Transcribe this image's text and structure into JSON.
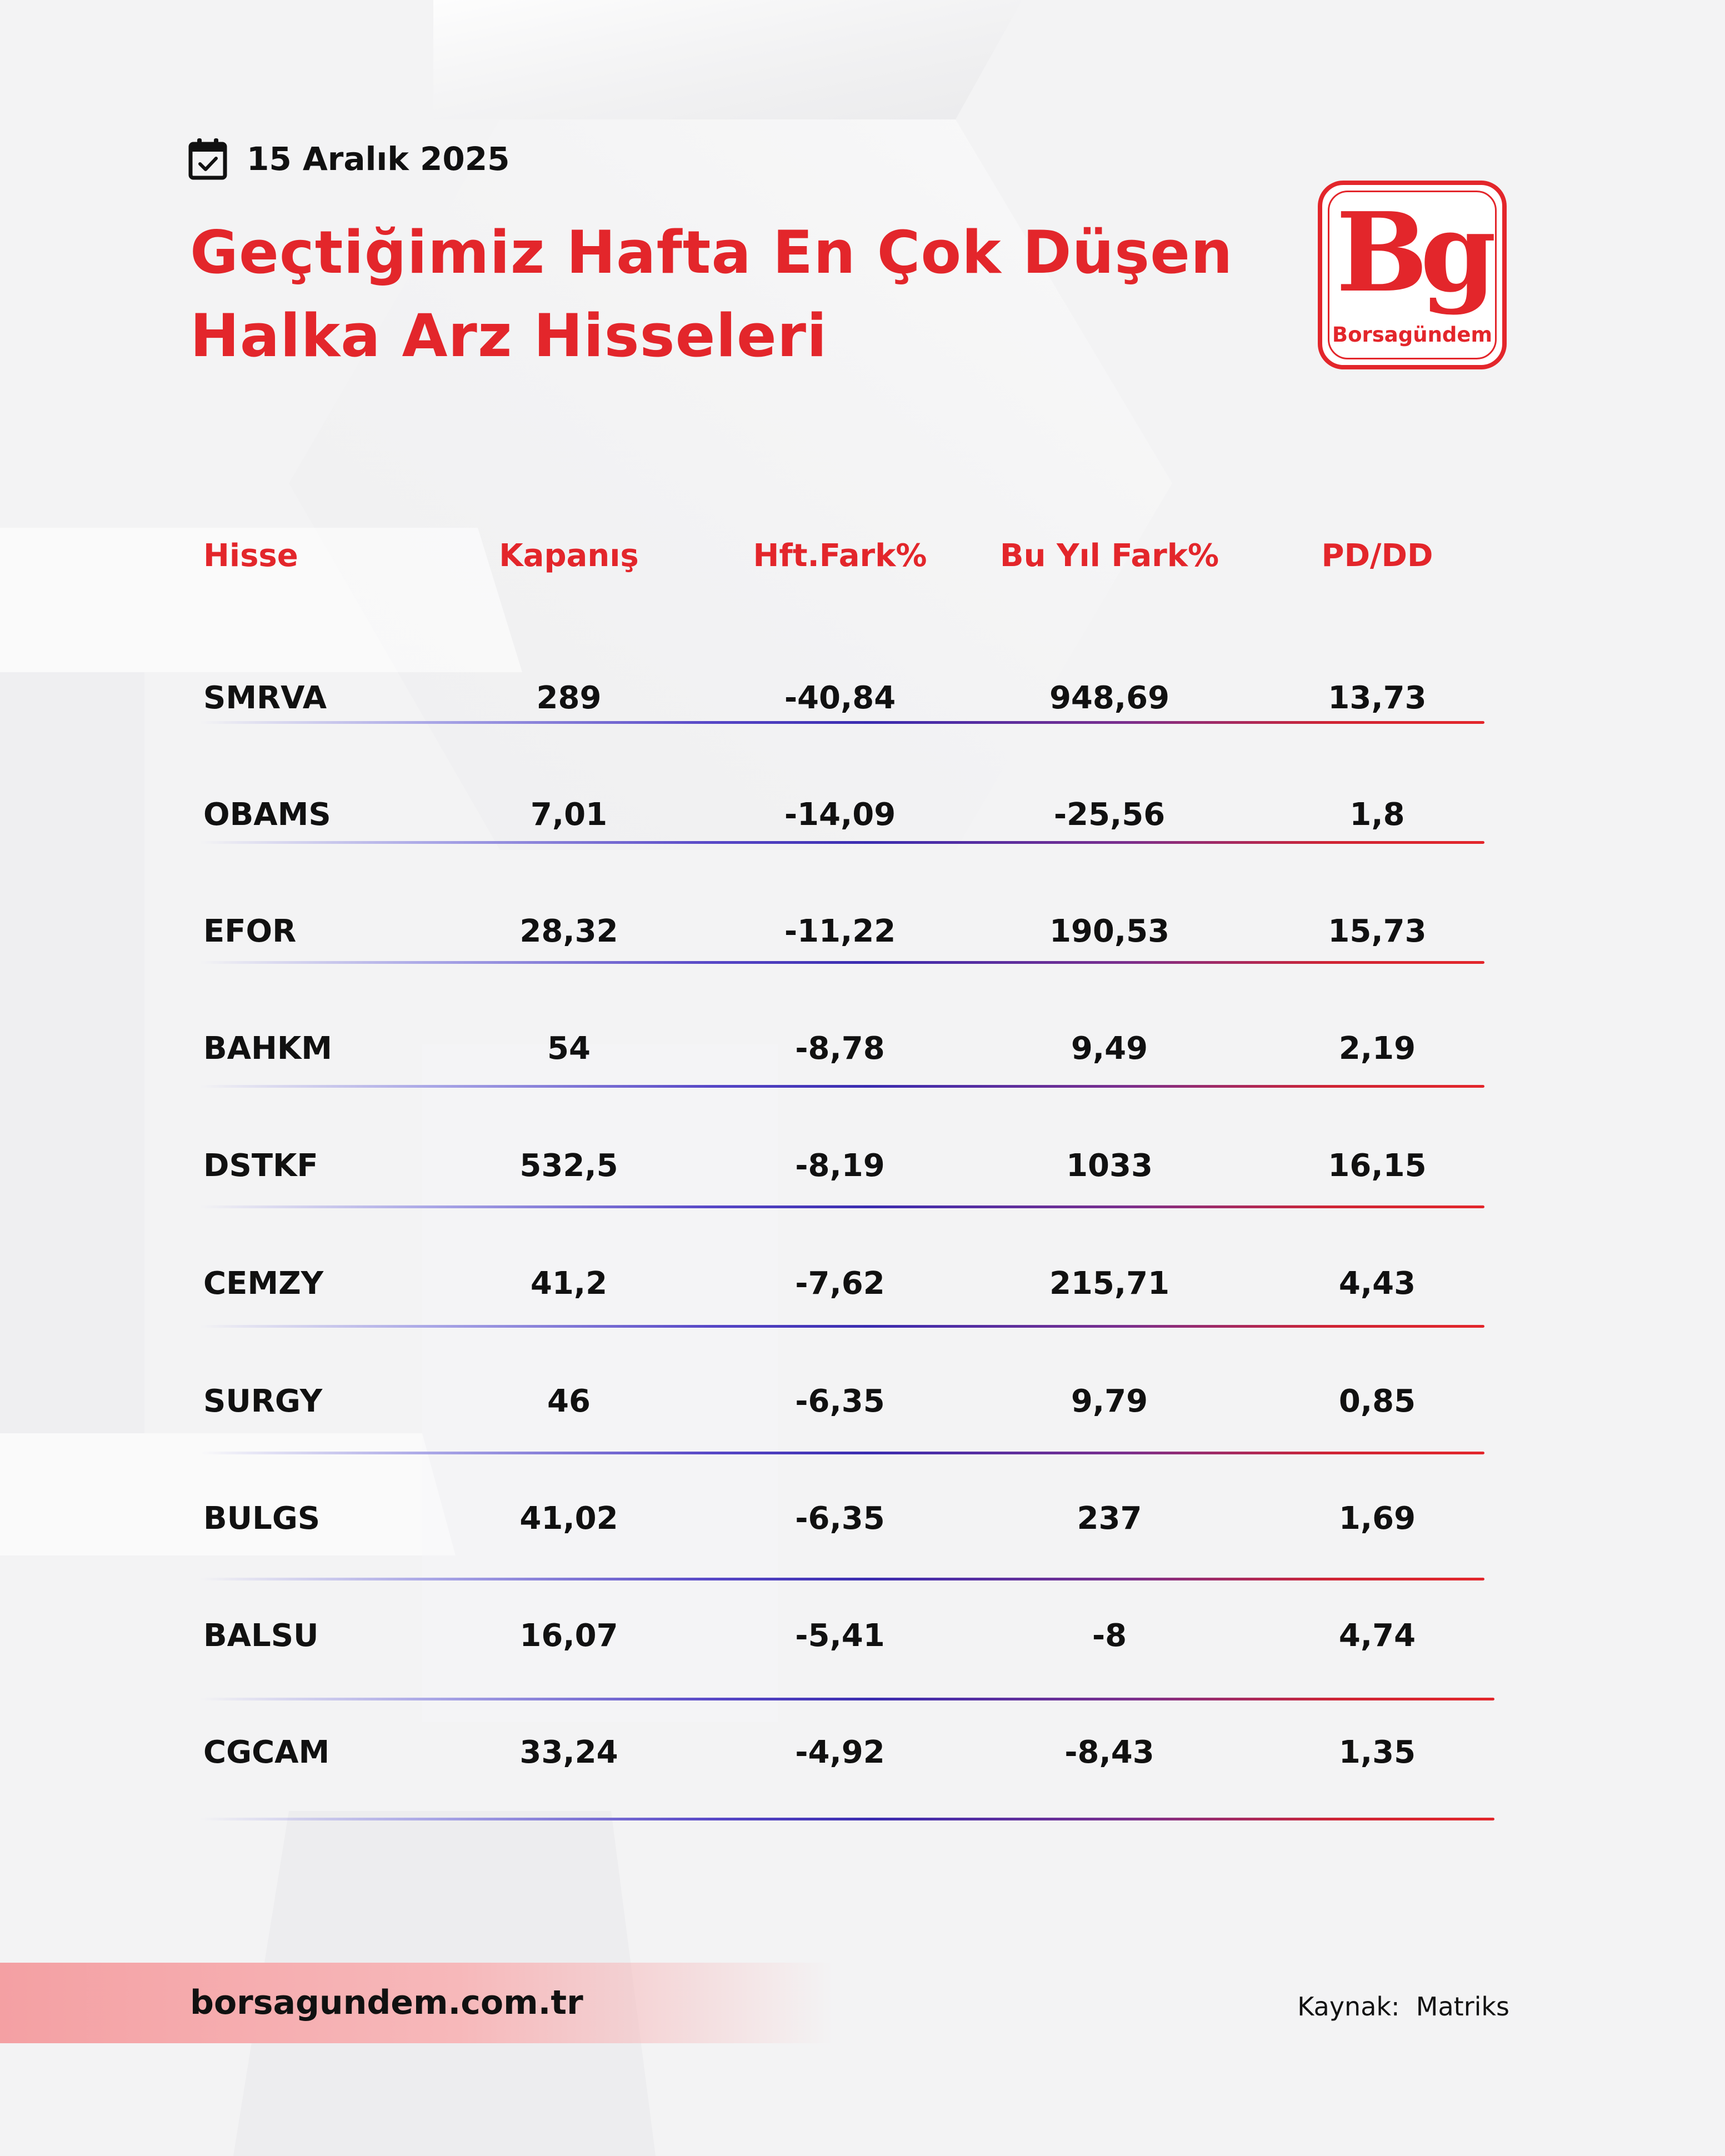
{
  "date": "15 Aralık 2025",
  "title": {
    "line1": "Geçtiğimiz Hafta En Çok Düşen",
    "line2": "Halka Arz Hisseleri"
  },
  "logo": {
    "mark": "Bg",
    "wordmark": "Borsagündem",
    "icon": "borsagundem-logo"
  },
  "icons": {
    "date": "calendar-check-icon"
  },
  "colors": {
    "accent": "#e3262b",
    "text": "#111111",
    "rule_start": "#a9a6e6",
    "rule_mid": "#3a2cb0",
    "rule_end": "#e3262b"
  },
  "table": {
    "headers": [
      "Hisse",
      "Kapanış",
      "Hft.Fark%",
      "Bu Yıl Fark%",
      "PD/DD"
    ],
    "rows": [
      [
        "SMRVA",
        "289",
        "-40,84",
        "948,69",
        "13,73"
      ],
      [
        "OBAMS",
        "7,01",
        "-14,09",
        "-25,56",
        "1,8"
      ],
      [
        "EFOR",
        "28,32",
        "-11,22",
        "190,53",
        "15,73"
      ],
      [
        "BAHKM",
        "54",
        "-8,78",
        "9,49",
        "2,19"
      ],
      [
        "DSTKF",
        "532,5",
        "-8,19",
        "1033",
        "16,15"
      ],
      [
        "CEMZY",
        "41,2",
        "-7,62",
        "215,71",
        "4,43"
      ],
      [
        "SURGY",
        "46",
        "-6,35",
        "9,79",
        "0,85"
      ],
      [
        "BULGS",
        "41,02",
        "-6,35",
        "237",
        "1,69"
      ],
      [
        "BALSU",
        "16,07",
        "-5,41",
        "-8",
        "4,74"
      ],
      [
        "CGCAM",
        "33,24",
        "-4,92",
        "-8,43",
        "1,35"
      ]
    ]
  },
  "footer": {
    "website": "borsagundem.com.tr",
    "source_label": "Kaynak:",
    "source_value": "Matriks"
  }
}
